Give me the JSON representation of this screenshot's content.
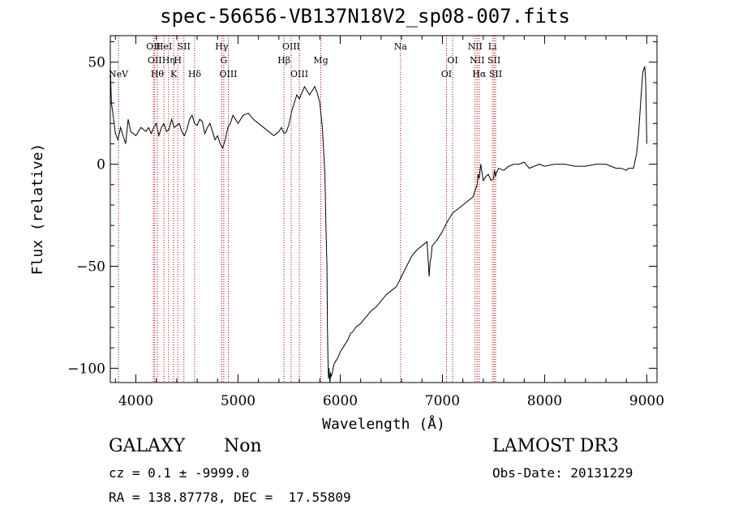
{
  "chart_data": {
    "type": "line",
    "title": "spec-56656-VB137N18V2_sp08-007.fits",
    "xlabel": "Wavelength (Å)",
    "ylabel": "Flux (relative)",
    "xlim": [
      3750,
      9100
    ],
    "ylim": [
      -107,
      63
    ],
    "xticks": [
      4000,
      5000,
      6000,
      7000,
      8000,
      9000
    ],
    "yticks": [
      50,
      0,
      -50,
      -100
    ],
    "grid": false,
    "line_color": "#000000",
    "marker_color": "#b30000",
    "series": [
      {
        "x": [
          3750,
          3760,
          3775,
          3800,
          3825,
          3850,
          3875,
          3900,
          3925,
          3950,
          3975,
          4000,
          4025,
          4050,
          4075,
          4100,
          4125,
          4150,
          4175,
          4200,
          4225,
          4250,
          4275,
          4300,
          4325,
          4350,
          4375,
          4400,
          4425,
          4450,
          4475,
          4500,
          4525,
          4550,
          4575,
          4600,
          4625,
          4650,
          4675,
          4700,
          4725,
          4750,
          4775,
          4800,
          4825,
          4850,
          4875,
          4900,
          4925,
          4950,
          4975,
          5000,
          5050,
          5100,
          5150,
          5200,
          5250,
          5300,
          5350,
          5400,
          5425,
          5450,
          5475,
          5500,
          5525,
          5550,
          5575,
          5600,
          5625,
          5650,
          5675,
          5700,
          5725,
          5750,
          5775,
          5800,
          5825,
          5850,
          5860,
          5870,
          5875,
          5880,
          5885,
          5890,
          5895,
          5900,
          5905,
          5910,
          5920,
          5930,
          5940,
          5950,
          5975,
          6000,
          6025,
          6050,
          6075,
          6100,
          6125,
          6150,
          6200,
          6250,
          6300,
          6350,
          6400,
          6450,
          6500,
          6550,
          6600,
          6650,
          6700,
          6750,
          6800,
          6850,
          6870,
          6880,
          6890,
          6900,
          6950,
          7000,
          7050,
          7100,
          7150,
          7200,
          7250,
          7300,
          7325,
          7340,
          7350,
          7360,
          7375,
          7400,
          7425,
          7450,
          7475,
          7500,
          7510,
          7520,
          7530,
          7550,
          7600,
          7650,
          7700,
          7750,
          7800,
          7850,
          7900,
          7950,
          8000,
          8100,
          8200,
          8300,
          8400,
          8500,
          8600,
          8700,
          8750,
          8800,
          8820,
          8850,
          8870,
          8900,
          8920,
          8940,
          8960,
          8980,
          8990,
          9000
        ],
        "values": [
          48,
          30,
          25,
          15,
          12,
          18,
          14,
          10,
          22,
          16,
          15,
          14,
          16,
          18,
          17,
          16,
          18,
          15,
          18,
          20,
          14,
          18,
          20,
          16,
          17,
          22,
          18,
          19,
          20,
          16,
          14,
          17,
          22,
          24,
          20,
          19,
          22,
          21,
          15,
          18,
          20,
          16,
          12,
          14,
          10,
          8,
          12,
          18,
          20,
          24,
          22,
          20,
          24,
          25,
          22,
          20,
          18,
          16,
          14,
          16,
          18,
          15,
          16,
          20,
          26,
          30,
          34,
          32,
          35,
          38,
          36,
          34,
          36,
          38,
          35,
          30,
          18,
          -5,
          -30,
          -50,
          -80,
          -95,
          -105,
          -100,
          -104,
          -107,
          -102,
          -104,
          -103,
          -100,
          -98,
          -97,
          -95,
          -92,
          -90,
          -88,
          -86,
          -83,
          -82,
          -80,
          -78,
          -75,
          -72,
          -70,
          -67,
          -64,
          -62,
          -60,
          -55,
          -50,
          -45,
          -42,
          -40,
          -38,
          -55,
          -48,
          -45,
          -40,
          -37,
          -33,
          -28,
          -24,
          -22,
          -20,
          -18,
          -16,
          -12,
          -10,
          -5,
          -7,
          0,
          -8,
          -6,
          -5,
          -8,
          -7,
          -3,
          -6,
          -4,
          -2,
          -3,
          -1,
          0,
          0,
          1,
          -2,
          -1,
          0,
          -1,
          0,
          0,
          -1,
          -1,
          0,
          0,
          -2,
          -2,
          -3,
          -2,
          -2,
          -2,
          5,
          15,
          30,
          45,
          48,
          40,
          10
        ]
      }
    ],
    "lines": [
      {
        "name": "NeV",
        "x": 3830,
        "row": 3
      },
      {
        "name": "OII",
        "x": 4172,
        "row": 1
      },
      {
        "name": "OII",
        "x": 4185,
        "row": 2
      },
      {
        "name": "Hθ",
        "x": 4210,
        "row": 3
      },
      {
        "name": "HeI",
        "x": 4275,
        "row": 1
      },
      {
        "name": "Hη",
        "x": 4320,
        "row": 2
      },
      {
        "name": "K",
        "x": 4370,
        "row": 3
      },
      {
        "name": "H",
        "x": 4410,
        "row": 2
      },
      {
        "name": "SII",
        "x": 4470,
        "row": 1
      },
      {
        "name": "Hδ",
        "x": 4575,
        "row": 3
      },
      {
        "name": "Hγ",
        "x": 4840,
        "row": 1
      },
      {
        "name": "G",
        "x": 4860,
        "row": 2
      },
      {
        "name": "OIII",
        "x": 4905,
        "row": 3
      },
      {
        "name": "Hβ",
        "x": 5450,
        "row": 2
      },
      {
        "name": "OIII",
        "x": 5520,
        "row": 1
      },
      {
        "name": "OIII",
        "x": 5600,
        "row": 3
      },
      {
        "name": "Mg",
        "x": 5810,
        "row": 2
      },
      {
        "name": "Na",
        "x": 6590,
        "row": 1
      },
      {
        "name": "OI",
        "x": 7040,
        "row": 3
      },
      {
        "name": "OI",
        "x": 7100,
        "row": 2
      },
      {
        "name": "NII",
        "x": 7320,
        "row": 1
      },
      {
        "name": "NII",
        "x": 7340,
        "row": 2
      },
      {
        "name": "Hα",
        "x": 7360,
        "row": 3
      },
      {
        "name": "Li",
        "x": 7490,
        "row": 1
      },
      {
        "name": "SII",
        "x": 7505,
        "row": 2
      },
      {
        "name": "SII",
        "x": 7520,
        "row": 3
      }
    ]
  },
  "info": {
    "class": "GALAXY",
    "subclass": "Non",
    "survey": "LAMOST DR3",
    "cz": "cz = 0.1 ± -9999.0",
    "obs_date": "Obs-Date: 20131229",
    "radec": "RA = 138.87778, DEC =  17.55809"
  }
}
